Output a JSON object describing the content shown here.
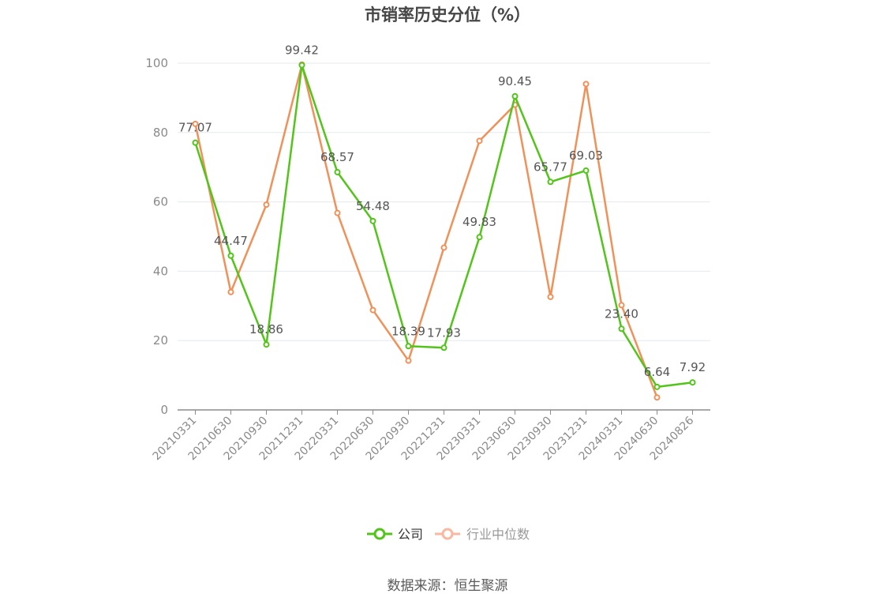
{
  "chart_data": {
    "type": "line",
    "title": "市销率历史分位（%）",
    "categories": [
      "20210331",
      "20210630",
      "20210930",
      "20211231",
      "20220331",
      "20220630",
      "20220930",
      "20221231",
      "20230331",
      "20230630",
      "20230930",
      "20231231",
      "20240331",
      "20240630",
      "20240826"
    ],
    "ylim": [
      0,
      100
    ],
    "yticks": [
      0,
      20,
      40,
      60,
      80,
      100
    ],
    "grid": true,
    "legend_position": "bottom",
    "series": [
      {
        "name": "公司",
        "color": "#52c41a",
        "values": [
          77.07,
          44.47,
          18.86,
          99.42,
          68.57,
          54.48,
          18.39,
          17.93,
          49.83,
          90.45,
          65.77,
          69.03,
          23.4,
          6.64,
          7.92
        ],
        "labels": [
          "77.07",
          "44.47",
          "18.86",
          "99.42",
          "68.57",
          "54.48",
          "18.39",
          "17.93",
          "49.83",
          "90.45",
          "65.77",
          "69.03",
          "23.40",
          "6.64",
          "7.92"
        ]
      },
      {
        "name": "行业中位数",
        "color": "#f0915a",
        "values": [
          82.5,
          34.0,
          59.2,
          99.6,
          56.8,
          28.8,
          14.2,
          46.8,
          77.6,
          88.0,
          32.6,
          94.0,
          30.2,
          3.6,
          null
        ]
      }
    ],
    "legend_colors": {
      "公司": "#52c41a",
      "行业中位数": "#f8b9a0"
    }
  },
  "source_text": "数据来源：恒生聚源"
}
